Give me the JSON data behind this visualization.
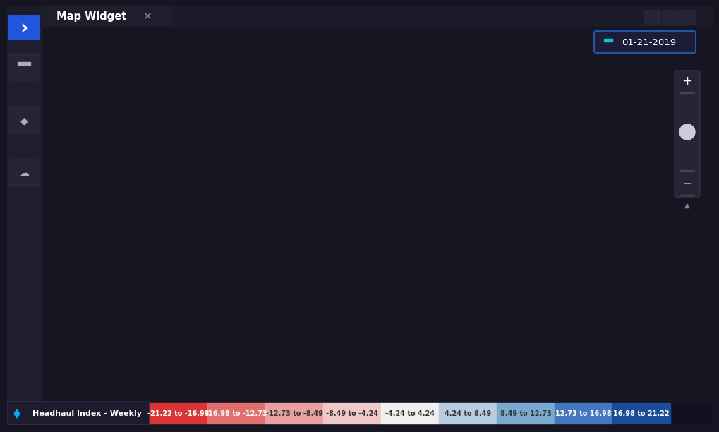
{
  "title": "Map Widget",
  "date_label": "01-21-2019",
  "legend_label": "Headhaul Index - Weekly",
  "bg_color": "#161622",
  "sidebar_color": "#22223a",
  "map_dark_bg": "#1a1a28",
  "canada_color": "#2a2a38",
  "us_default_color": "#e8e8f0",
  "us_border_color": "#888899",
  "legend_bins": [
    {
      "label": "-21.22 to -16.98",
      "color": "#d93535",
      "text_color": "white"
    },
    {
      "label": "-16.98 to -12.73",
      "color": "#e07070",
      "text_color": "white"
    },
    {
      "label": "-12.73 to -8.49",
      "color": "#e8a0a0",
      "text_color": "#333333"
    },
    {
      "label": "-8.49 to -4.24",
      "color": "#f0c8c8",
      "text_color": "#333333"
    },
    {
      "label": "-4.24 to 4.24",
      "color": "#f2efef",
      "text_color": "#333333"
    },
    {
      "label": "4.24 to 8.49",
      "color": "#b8cce0",
      "text_color": "#333333"
    },
    {
      "label": "8.49 to 12.73",
      "color": "#7aaad0",
      "text_color": "#333333"
    },
    {
      "label": "12.73 to 16.98",
      "color": "#4477bb",
      "text_color": "white"
    },
    {
      "label": "16.98 to 21.22",
      "color": "#1a4d99",
      "text_color": "white"
    }
  ],
  "figwidth": 10.0,
  "figheight": 5.93
}
